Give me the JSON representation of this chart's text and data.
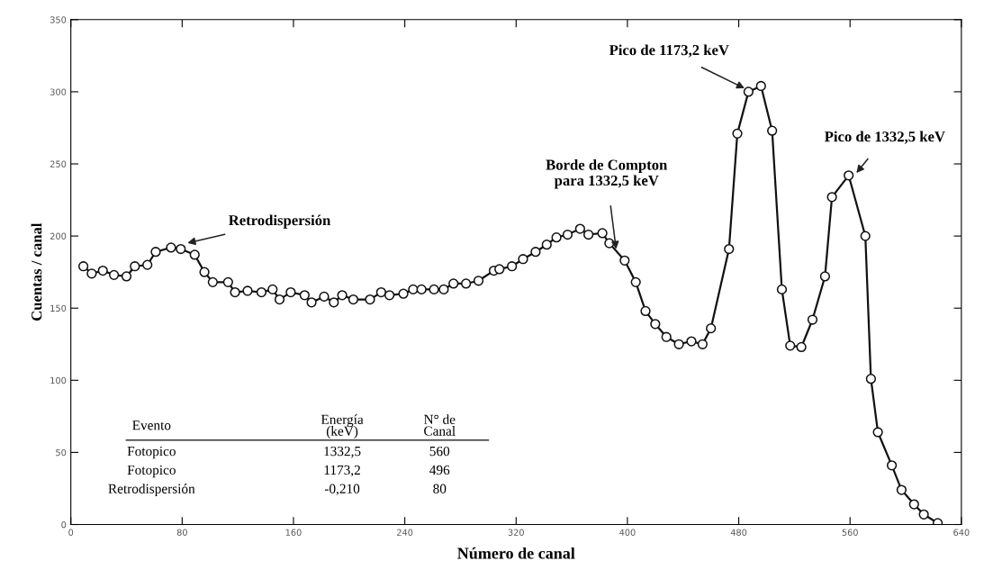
{
  "chart_data": {
    "type": "line",
    "xlabel": "Número de canal",
    "ylabel": "Cuentas / canal",
    "xlim": [
      0,
      640
    ],
    "ylim": [
      0,
      350
    ],
    "xticks": [
      0,
      80,
      160,
      240,
      320,
      400,
      480,
      560,
      640
    ],
    "yticks": [
      0,
      {
        "value": 50,
        "label": "50"
      },
      100,
      150,
      200,
      250,
      300,
      350
    ],
    "marker": "circle",
    "line_style": "solid",
    "grid": false,
    "legend": false,
    "series": [
      {
        "color": "#111111",
        "x": [
          9,
          15,
          23,
          31,
          40,
          46,
          55,
          61,
          72,
          79,
          89,
          96,
          102,
          113,
          118,
          127,
          137,
          145,
          150,
          158,
          168,
          173,
          182,
          189,
          195,
          203,
          215,
          223,
          229,
          239,
          246,
          252,
          261,
          268,
          275,
          284,
          293,
          304,
          308,
          317,
          325,
          334,
          342,
          349,
          357,
          366,
          372,
          382,
          387,
          398,
          406,
          413,
          420,
          428,
          437,
          446,
          454,
          460,
          473,
          479,
          487,
          496,
          504,
          511,
          517,
          525,
          533,
          542,
          547,
          559,
          571,
          575,
          580,
          590,
          597,
          606,
          613,
          623
        ],
        "values": [
          179,
          174,
          176,
          173,
          172,
          179,
          180,
          189,
          192,
          191,
          187,
          175,
          168,
          168,
          161,
          162,
          161,
          163,
          156,
          161,
          159,
          154,
          158,
          154,
          159,
          156,
          156,
          161,
          159,
          160,
          163,
          163,
          163,
          163,
          167,
          167,
          169,
          176,
          177,
          179,
          184,
          189,
          194,
          199,
          201,
          205,
          201,
          202,
          195,
          183,
          168,
          148,
          139,
          130,
          125,
          127,
          125,
          136,
          191,
          271,
          300,
          304,
          273,
          163,
          124,
          123,
          142,
          172,
          227,
          242,
          200,
          101,
          64,
          41,
          24,
          14,
          7,
          1
        ]
      }
    ],
    "annotations": [
      {
        "text": "Retrodispersión",
        "x": 83,
        "y": 195
      },
      {
        "text": "Borde de Compton\npara 1332,5 keV",
        "x": 392,
        "y": 190
      },
      {
        "text": "Pico de 1173,2 keV",
        "x": 485,
        "y": 302
      },
      {
        "text": "Pico de 1332,5 keV",
        "x": 564,
        "y": 243
      },
      "Evento",
      "Energía\n(keV)",
      "N° de\nCanal",
      "Fotopico",
      "1332,5",
      "560",
      "Fotopico",
      "1173,2",
      "496",
      "Retrodispersión",
      "-0,210",
      "80"
    ]
  }
}
